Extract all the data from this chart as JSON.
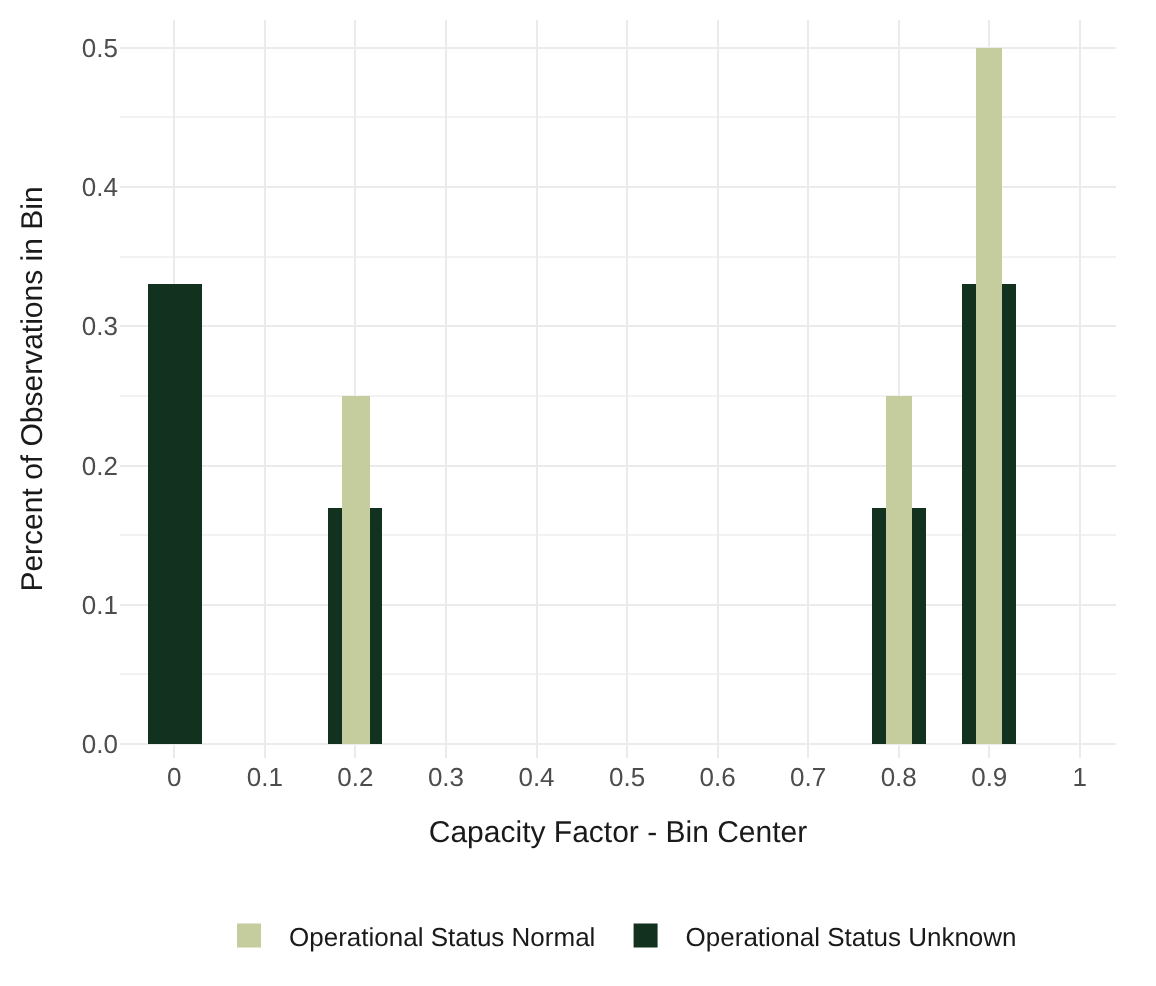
{
  "chart_data": {
    "type": "bar",
    "xlabel": "Capacity Factor - Bin Center",
    "ylabel": "Percent of Observations in Bin",
    "x": [
      0,
      0.2,
      0.8,
      0.9
    ],
    "series": [
      {
        "name": "Operational Status Unknown",
        "color": "#12311f",
        "values": [
          0.33,
          0.17,
          0.17,
          0.33
        ]
      },
      {
        "name": "Operational Status Normal",
        "color": "#c5cc9d",
        "values": [
          0,
          0.25,
          0.25,
          0.5
        ]
      }
    ],
    "xlim": [
      -0.06,
      1.04
    ],
    "xticks": [
      {
        "value": 0,
        "label": "0"
      },
      0.1,
      0.2,
      0.3,
      0.4,
      0.5,
      0.6,
      0.7,
      0.8,
      0.9,
      {
        "value": 1,
        "label": "1"
      }
    ],
    "ylim": [
      -0.01,
      0.52
    ],
    "yticks": [
      {
        "value": 0,
        "label": "0.0"
      },
      0.1,
      0.2,
      0.3,
      0.4,
      0.5
    ],
    "grid": true,
    "legend": "bottom"
  }
}
